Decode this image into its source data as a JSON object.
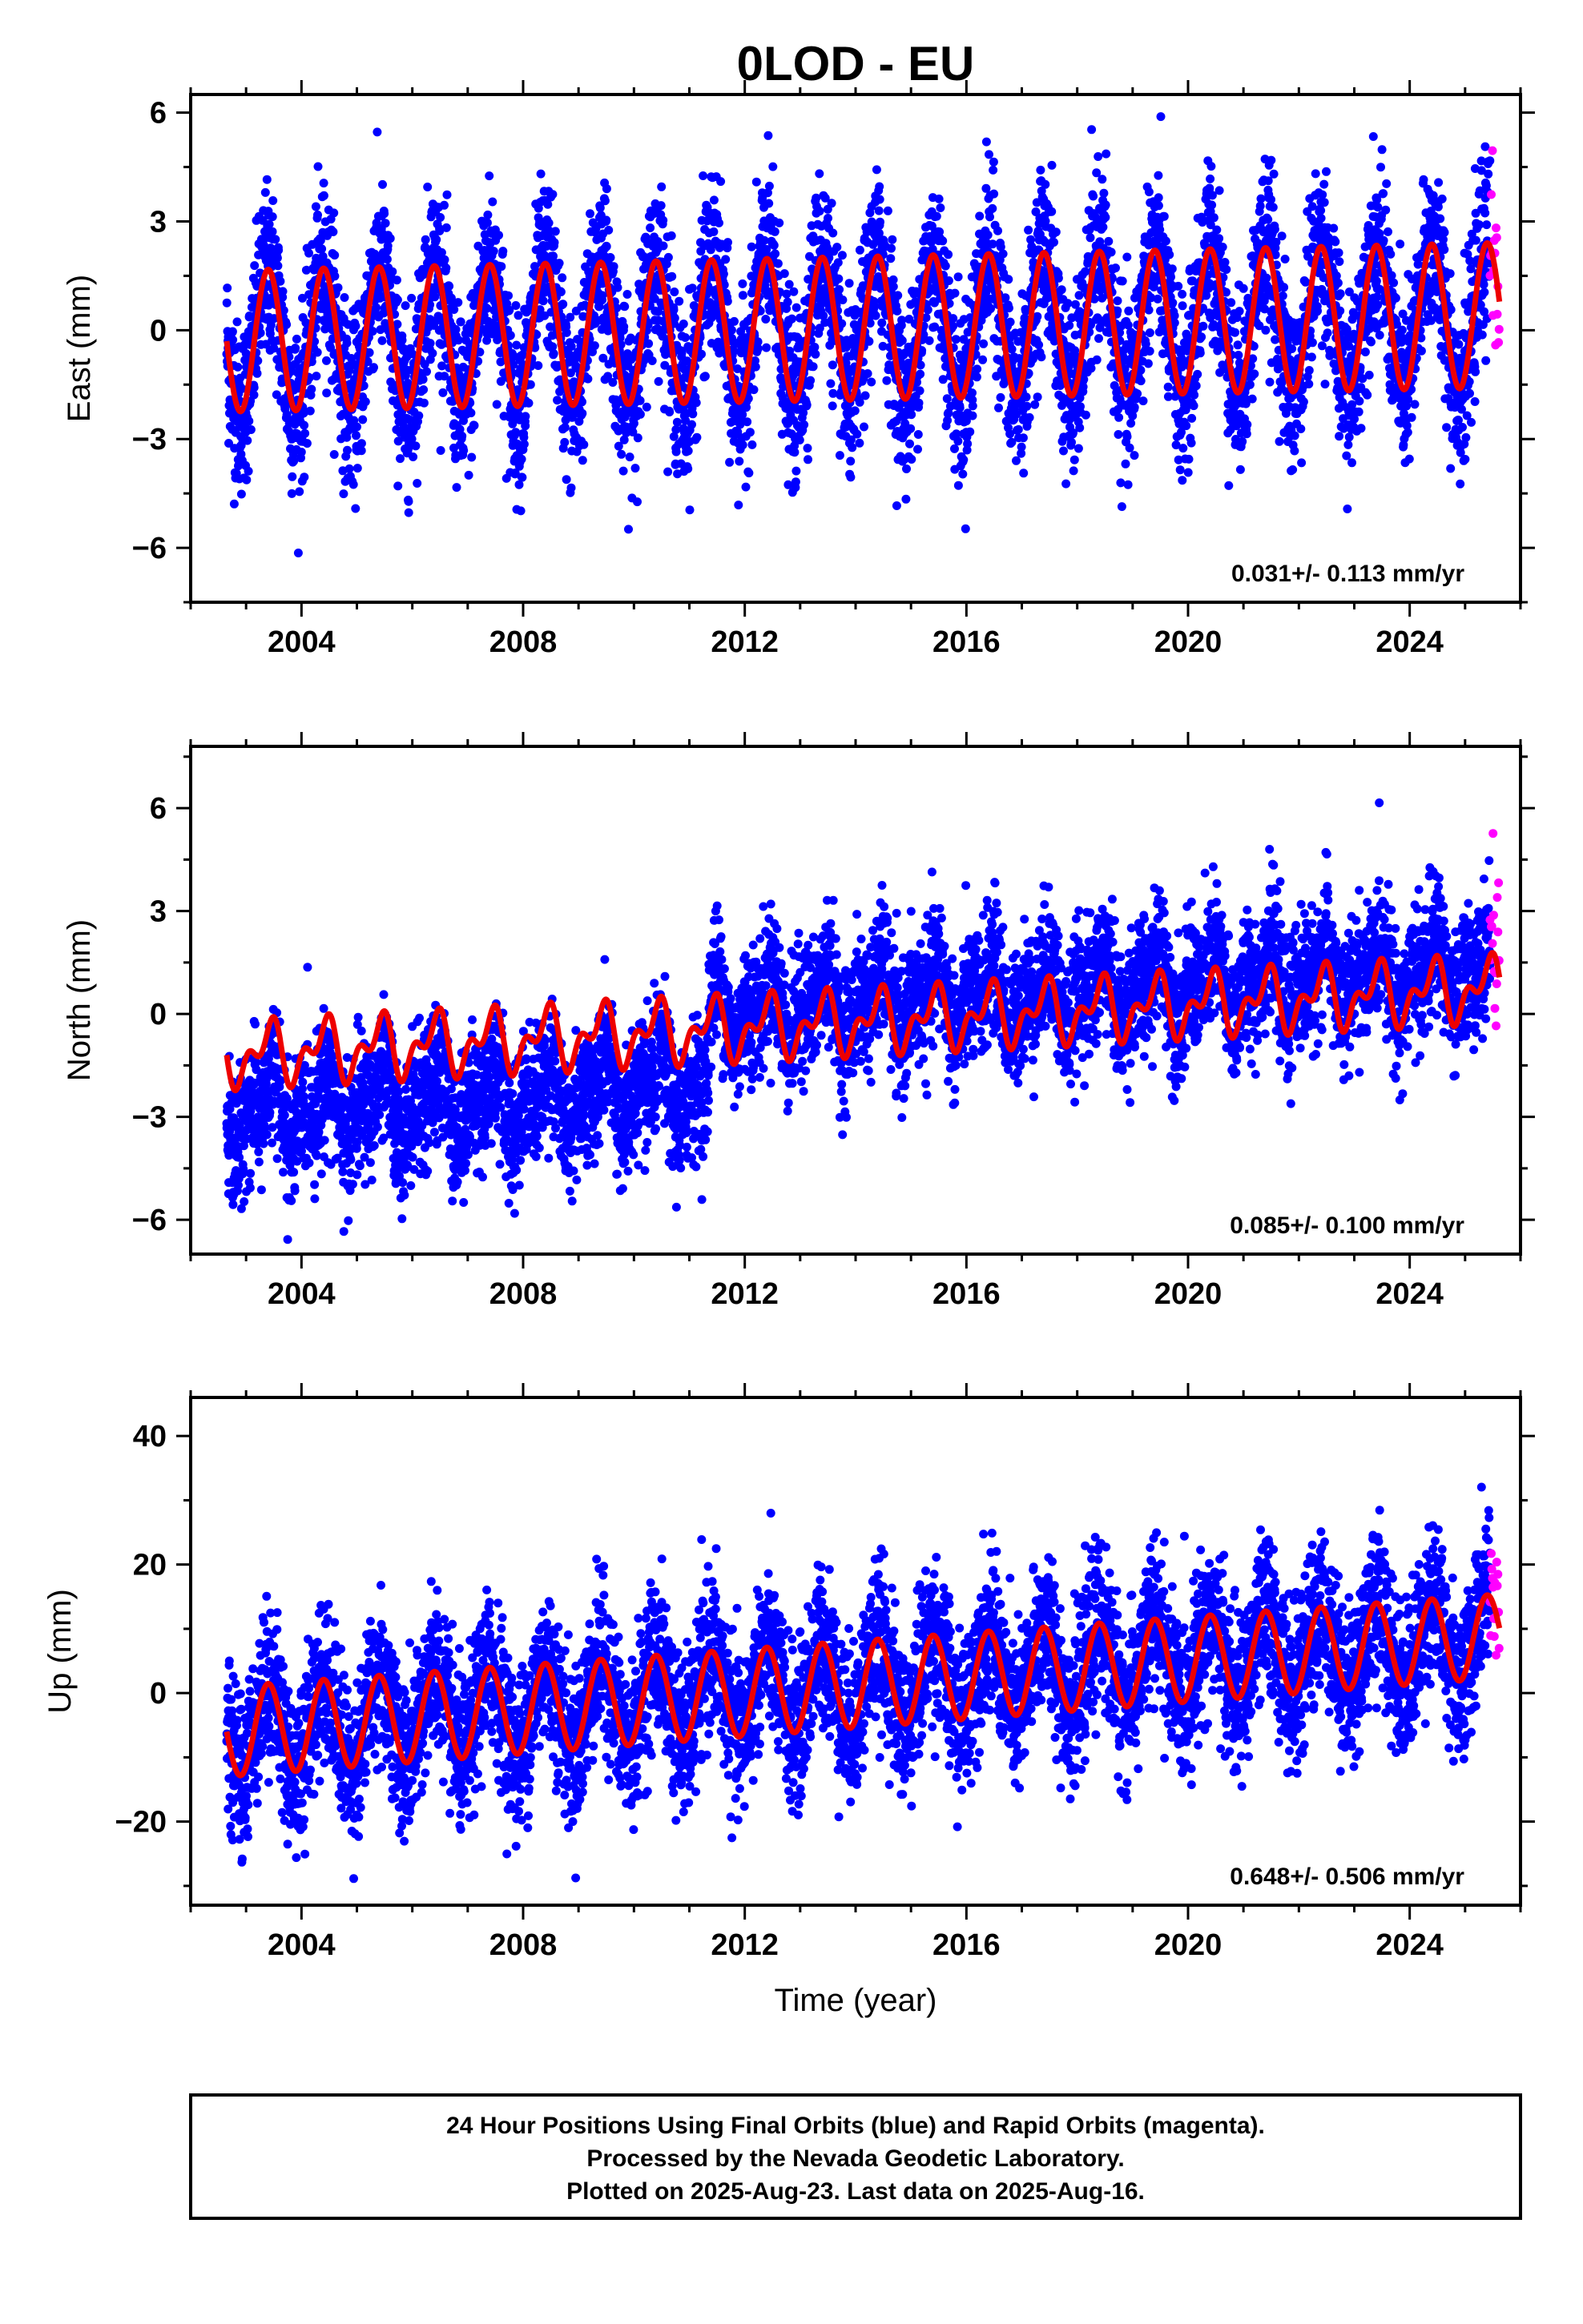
{
  "title": "0LOD - EU",
  "colors": {
    "final_orbits": "#0000ff",
    "rapid_orbits": "#ff00ff",
    "model": "#ee0000",
    "frame": "#000000"
  },
  "caption": {
    "line1": "24 Hour Positions Using Final Orbits (blue) and Rapid Orbits (magenta).",
    "line2": "Processed by the Nevada Geodetic Laboratory.",
    "line3": "Plotted on 2025-Aug-23. Last data on 2025-Aug-16."
  },
  "chart_data": [
    {
      "type": "scatter",
      "ylabel": "East (mm)",
      "xlabel": "",
      "rate_label": "0.031+/- 0.113 mm/yr",
      "xlim": [
        2002.0,
        2026.0
      ],
      "ylim": [
        -7.5,
        6.5
      ],
      "xticks": [
        2004,
        2008,
        2012,
        2016,
        2020,
        2024
      ],
      "xtick_labels": [
        "2004",
        "2008",
        "2012",
        "2016",
        "2020",
        "2024"
      ],
      "yticks": [
        -6,
        -3,
        0,
        3,
        6
      ],
      "ytick_labels": [
        "−6",
        "−3",
        "0",
        "3",
        "6"
      ],
      "data_start": 2002.65,
      "rapid_start": 2025.45,
      "data_end": 2025.62,
      "model": {
        "offset": -0.3,
        "trend": 0.031,
        "annual_amp_start": 1.95,
        "annual_amp_end": 2.0,
        "semiannual_amp": 0.0,
        "scatter": 1.15
      },
      "series": [
        {
          "name": "Final Orbits",
          "color": "#0000ff"
        },
        {
          "name": "Rapid Orbits",
          "color": "#ff00ff"
        }
      ]
    },
    {
      "type": "scatter",
      "ylabel": "North (mm)",
      "xlabel": "",
      "rate_label": "0.085+/- 0.100 mm/yr",
      "xlim": [
        2002.0,
        2026.0
      ],
      "ylim": [
        -7.0,
        7.8
      ],
      "xticks": [
        2004,
        2008,
        2012,
        2016,
        2020,
        2024
      ],
      "xtick_labels": [
        "2004",
        "2008",
        "2012",
        "2016",
        "2020",
        "2024"
      ],
      "yticks": [
        -6,
        -3,
        0,
        3,
        6
      ],
      "ytick_labels": [
        "−6",
        "−3",
        "0",
        "3",
        "6"
      ],
      "data_start": 2002.65,
      "rapid_start": 2025.45,
      "data_end": 2025.62,
      "offset_epoch": 2011.35,
      "data_offsets": {
        "before": -1.7,
        "after": 0.55
      },
      "model": {
        "offset": -1.2,
        "trend": 0.085,
        "annual_amp_start": 0.7,
        "annual_amp_end": 0.7,
        "semiannual_amp": 0.5,
        "scatter": 0.95
      },
      "series": [
        {
          "name": "Final Orbits",
          "color": "#0000ff"
        },
        {
          "name": "Rapid Orbits",
          "color": "#ff00ff"
        }
      ]
    },
    {
      "type": "scatter",
      "ylabel": "Up (mm)",
      "xlabel": "Time (year)",
      "rate_label": "0.648+/- 0.506 mm/yr",
      "xlim": [
        2002.0,
        2026.0
      ],
      "ylim": [
        -33.0,
        46.0
      ],
      "xticks": [
        2004,
        2008,
        2012,
        2016,
        2020,
        2024
      ],
      "xtick_labels": [
        "2004",
        "2008",
        "2012",
        "2016",
        "2020",
        "2024"
      ],
      "yticks": [
        -20,
        0,
        20,
        40
      ],
      "ytick_labels": [
        "−20",
        "0",
        "20",
        "40"
      ],
      "data_start": 2002.65,
      "rapid_start": 2025.45,
      "data_end": 2025.62,
      "model": {
        "offset": -6.0,
        "trend": 0.648,
        "annual_amp_start": 7.0,
        "annual_amp_end": 6.5,
        "semiannual_amp": 0.0,
        "scatter": 6.0
      },
      "series": [
        {
          "name": "Final Orbits",
          "color": "#0000ff"
        },
        {
          "name": "Rapid Orbits",
          "color": "#ff00ff"
        }
      ]
    }
  ]
}
